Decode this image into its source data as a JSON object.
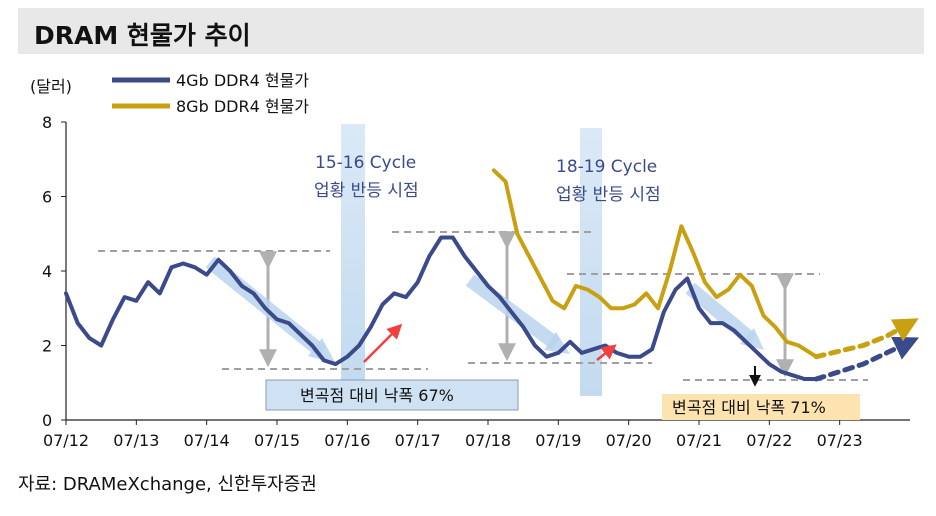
{
  "title": "DRAM 현물가 추이",
  "source": "자료: DRAMeXchange, 신한투자증권",
  "colors": {
    "series1": "#3a4a8a",
    "series2": "#c9a010",
    "highlight": "#bcd6ee",
    "arrow_red": "#f04040",
    "dashed": "#a0a0a0"
  },
  "chart_data": {
    "type": "line",
    "title": "DRAM 현물가 추이",
    "ylabel": "(달러)",
    "xlabel": "",
    "ylim": [
      0,
      8
    ],
    "xlim": [
      "2012-07",
      "2024-07"
    ],
    "yticks": [
      "0",
      "2",
      "4",
      "6",
      "8"
    ],
    "xticks": [
      "07/12",
      "07/13",
      "07/14",
      "07/15",
      "07/16",
      "07/17",
      "07/18",
      "07/19",
      "07/20",
      "07/21",
      "07/22",
      "07/23"
    ],
    "legend_position": "top-left",
    "series": [
      {
        "name": "4Gb DDR4 현물가",
        "x": [
          "2012-07",
          "2012-09",
          "2012-11",
          "2013-01",
          "2013-03",
          "2013-05",
          "2013-07",
          "2013-09",
          "2013-11",
          "2014-01",
          "2014-03",
          "2014-05",
          "2014-07",
          "2014-09",
          "2014-11",
          "2015-01",
          "2015-03",
          "2015-05",
          "2015-07",
          "2015-09",
          "2015-11",
          "2016-01",
          "2016-03",
          "2016-05",
          "2016-07",
          "2016-09",
          "2016-11",
          "2017-01",
          "2017-03",
          "2017-05",
          "2017-07",
          "2017-09",
          "2017-11",
          "2018-01",
          "2018-03",
          "2018-05",
          "2018-07",
          "2018-09",
          "2018-11",
          "2019-01",
          "2019-03",
          "2019-05",
          "2019-07",
          "2019-09",
          "2019-11",
          "2020-01",
          "2020-03",
          "2020-05",
          "2020-07",
          "2020-09",
          "2020-11",
          "2021-01",
          "2021-03",
          "2021-05",
          "2021-07",
          "2021-09",
          "2021-11",
          "2022-01",
          "2022-03",
          "2022-05",
          "2022-07",
          "2022-09",
          "2022-11",
          "2023-01",
          "2023-03"
        ],
        "values": [
          3.4,
          2.6,
          2.2,
          2.0,
          2.7,
          3.3,
          3.2,
          3.7,
          3.4,
          4.1,
          4.2,
          4.1,
          3.9,
          4.3,
          4.0,
          3.6,
          3.4,
          3.0,
          2.7,
          2.6,
          2.3,
          2.0,
          1.6,
          1.5,
          1.7,
          2.0,
          2.5,
          3.1,
          3.4,
          3.3,
          3.7,
          4.4,
          4.9,
          4.9,
          4.4,
          4.0,
          3.6,
          3.3,
          2.9,
          2.5,
          2.0,
          1.7,
          1.8,
          2.1,
          1.8,
          1.9,
          2.0,
          1.8,
          1.7,
          1.7,
          1.9,
          2.9,
          3.5,
          3.8,
          3.0,
          2.6,
          2.6,
          2.4,
          2.1,
          1.8,
          1.5,
          1.3,
          1.2,
          1.1,
          1.1
        ]
      },
      {
        "name": "8Gb DDR4 현물가",
        "x": [
          "2018-08",
          "2018-10",
          "2018-12",
          "2019-02",
          "2019-04",
          "2019-06",
          "2019-08",
          "2019-10",
          "2019-12",
          "2020-02",
          "2020-04",
          "2020-06",
          "2020-08",
          "2020-10",
          "2020-12",
          "2021-02",
          "2021-04",
          "2021-06",
          "2021-08",
          "2021-10",
          "2021-12",
          "2022-02",
          "2022-04",
          "2022-06",
          "2022-08",
          "2022-10",
          "2022-12",
          "2023-02",
          "2023-03"
        ],
        "values": [
          6.7,
          6.4,
          5.0,
          4.4,
          3.8,
          3.2,
          3.0,
          3.6,
          3.5,
          3.3,
          3.0,
          3.0,
          3.1,
          3.4,
          3.0,
          4.0,
          5.2,
          4.5,
          3.7,
          3.3,
          3.5,
          3.9,
          3.6,
          2.8,
          2.5,
          2.1,
          2.0,
          1.8,
          1.7
        ]
      },
      {
        "name": "",
        "kind": "forecast-4Gb",
        "x": [
          "2023-03",
          "2023-07",
          "2023-11",
          "2024-03",
          "2024-07"
        ],
        "values": [
          1.1,
          1.3,
          1.5,
          1.8,
          2.1
        ]
      },
      {
        "name": "",
        "kind": "forecast-8Gb",
        "x": [
          "2023-03",
          "2023-07",
          "2023-11",
          "2024-03",
          "2024-07"
        ],
        "values": [
          1.7,
          1.85,
          2.0,
          2.25,
          2.6
        ]
      }
    ],
    "annotations": [
      {
        "id": "cycle1",
        "text1": "15-16 Cycle",
        "text2": "업황 반등 시점"
      },
      {
        "id": "cycle2",
        "text1": "18-19 Cycle",
        "text2": "업황 반등 시점"
      },
      {
        "id": "drop1",
        "text": "변곡점 대비 낙폭 67%"
      },
      {
        "id": "drop2",
        "text": "변곡점 대비 낙폭 71%"
      }
    ]
  }
}
